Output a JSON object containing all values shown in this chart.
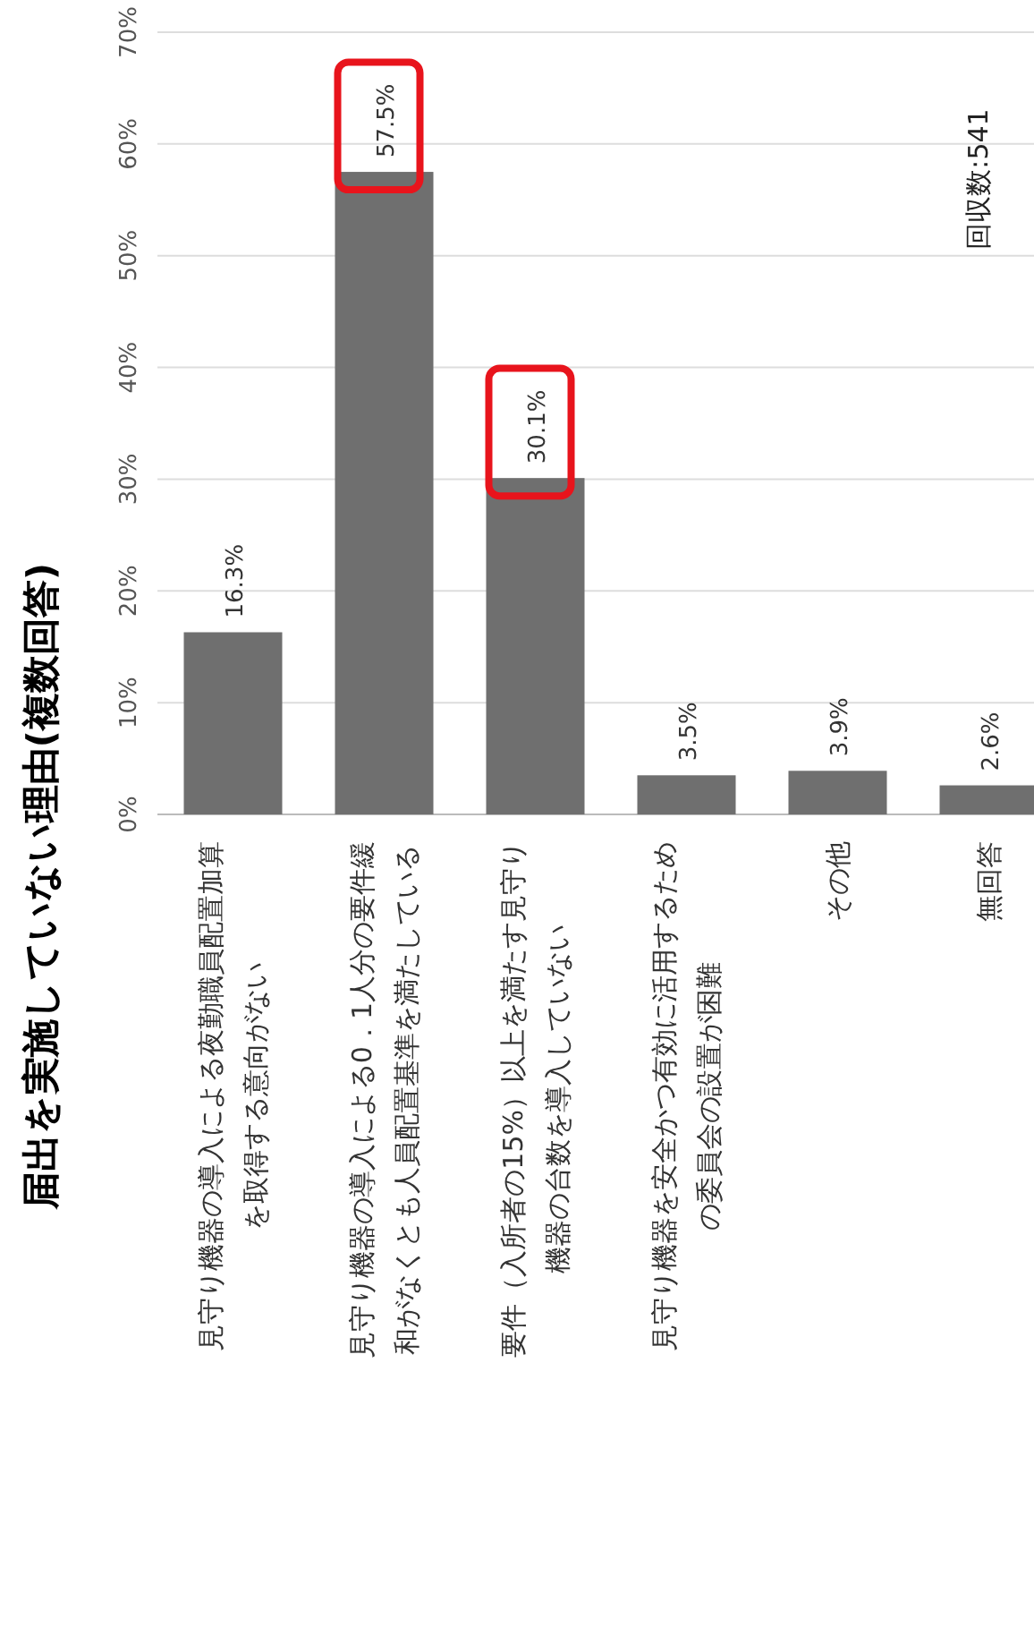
{
  "chart_data": {
    "type": "bar",
    "title": "届出を実施していない理由(複数回答)",
    "categories": [
      "見守り機器の導入による夜勤職員配置加算を取得する意向がない",
      "見守り機器の導入による0．1人分の要件緩和がなくとも人員配置基準を満たしている",
      "要件（入所者の15%）以上を満たす見守り機器の台数を導入していない",
      "見守り機器を安全かつ有効に活用するための委員会の設置が困難",
      "その他",
      "無回答"
    ],
    "values": [
      16.3,
      57.5,
      30.1,
      3.5,
      3.9,
      2.6
    ],
    "value_labels": [
      "16.3%",
      "57.5%",
      "30.1%",
      "3.5%",
      "3.9%",
      "2.6%"
    ],
    "color": "#6f6f6f",
    "ylim": [
      0,
      70
    ],
    "yticks": [
      {
        "value": 0,
        "label": "0%"
      },
      {
        "value": 10,
        "label": "10%"
      },
      {
        "value": 20,
        "label": "20%"
      },
      {
        "value": 30,
        "label": "30%"
      },
      {
        "value": 40,
        "label": "40%"
      },
      {
        "value": 50,
        "label": "50%"
      },
      {
        "value": 60,
        "label": "60%"
      },
      {
        "value": 70,
        "label": "70%"
      }
    ],
    "grid": "y",
    "annotations": [
      "回収数:541"
    ]
  }
}
